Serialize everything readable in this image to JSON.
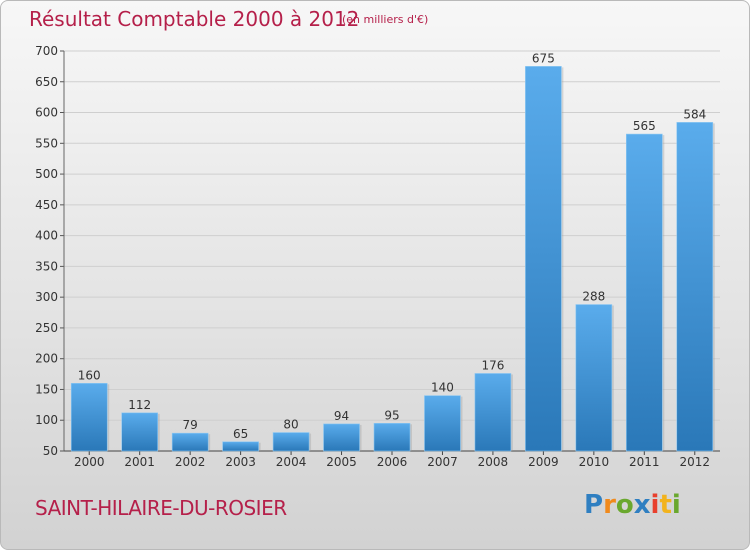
{
  "header": {
    "title": "Résultat Comptable 2000 à 2012",
    "subtitle": "(en milliers d'€)"
  },
  "footer": {
    "place": "SAINT-HILAIRE-DU-ROSIER",
    "logo": "Proxiti"
  },
  "colors": {
    "accent": "#b5204a",
    "bar_top": "#5aacec",
    "bar_bottom": "#2a78b8"
  },
  "chart_data": {
    "type": "bar",
    "title": "Résultat Comptable 2000 à 2012",
    "subtitle": "(en milliers d'€)",
    "categories": [
      "2000",
      "2001",
      "2002",
      "2003",
      "2004",
      "2005",
      "2006",
      "2007",
      "2008",
      "2009",
      "2010",
      "2011",
      "2012"
    ],
    "values": [
      160,
      112,
      79,
      65,
      80,
      94,
      95,
      140,
      176,
      675,
      288,
      565,
      584
    ],
    "ylim": [
      50,
      700
    ],
    "yticks": [
      50,
      100,
      150,
      200,
      250,
      300,
      350,
      400,
      450,
      500,
      550,
      600,
      650,
      700
    ],
    "grid": true,
    "legend": "none"
  }
}
